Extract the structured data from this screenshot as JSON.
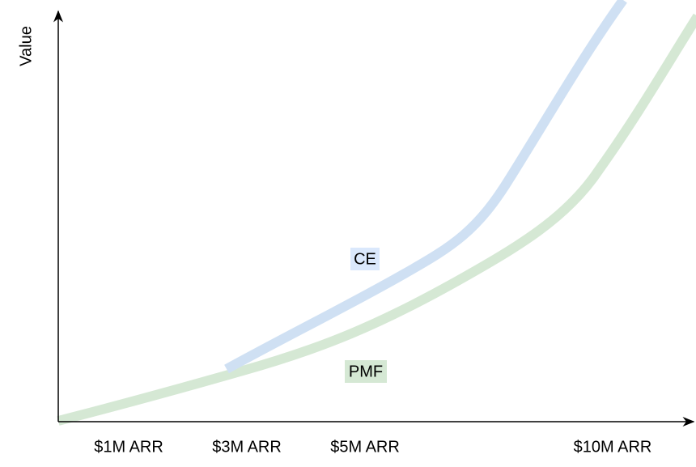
{
  "axes": {
    "y_label": "Value",
    "x_labels": [
      "$1M ARR",
      "$3M ARR",
      "$5M ARR",
      "$10M ARR"
    ]
  },
  "curves": [
    {
      "label": "CE"
    },
    {
      "label": "PMF"
    }
  ]
}
